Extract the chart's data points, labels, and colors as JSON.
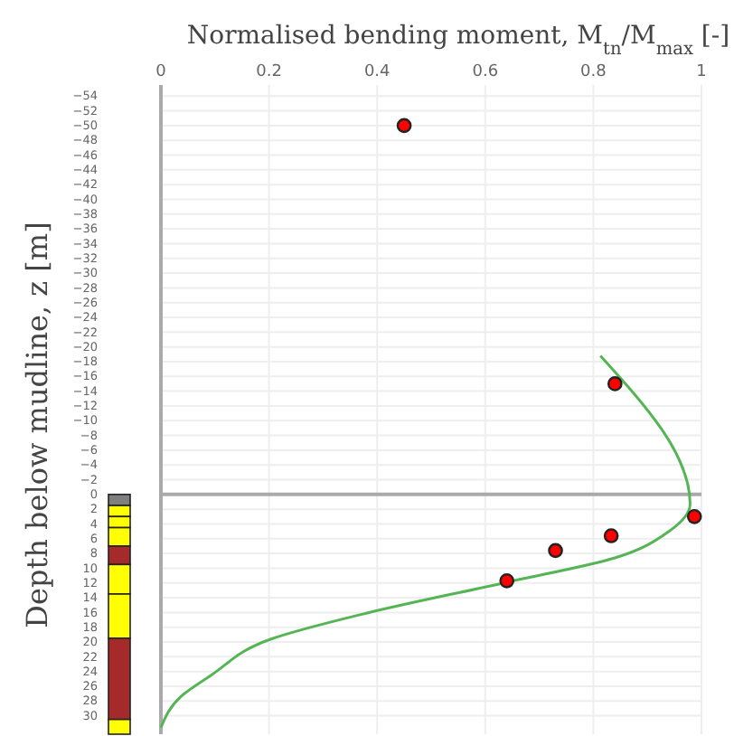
{
  "chart_data": {
    "type": "scatter",
    "xlabel": "Normalised bending moment, M$_{tn}$/M$_{max}$ [-]",
    "ylabel": "Depth below mudline, z [m]",
    "xlim": [
      0,
      1
    ],
    "xticks": [
      0,
      0.2,
      0.4,
      0.6,
      0.8,
      1
    ],
    "ylim": [
      32.5,
      -55.5
    ],
    "yticks": [
      -54,
      -52,
      -50,
      -48,
      -46,
      -44,
      -42,
      -40,
      -38,
      -36,
      -34,
      -32,
      -30,
      -28,
      -26,
      -24,
      -22,
      -20,
      -18,
      -16,
      -14,
      -12,
      -10,
      -8,
      -6,
      -4,
      -2,
      0,
      2,
      4,
      6,
      8,
      10,
      12,
      14,
      16,
      18,
      20,
      22,
      24,
      26,
      28,
      30
    ],
    "grid": true,
    "marker": "circle",
    "series": [
      {
        "type": "line",
        "marker": "none",
        "color": "#55b555",
        "x": [
          0.813,
          0.979,
          0.94,
          0.84,
          0.64,
          0.38,
          0.204,
          0.093,
          0.037,
          0
        ],
        "values": [
          -18.8,
          1.3,
          5,
          8.6,
          11.9,
          16.1,
          19.6,
          24.5,
          27.4,
          31.6
        ]
      },
      {
        "color": "#ff0000",
        "x": [
          0.45,
          0.84,
          0.987,
          0.833,
          0.73,
          0.64
        ],
        "values": [
          -50,
          -15,
          3,
          5.6,
          7.6,
          11.7
        ]
      }
    ],
    "ref_lines": [
      {
        "axis": "y",
        "value": 0,
        "color": "#aaaaaa"
      }
    ]
  }
}
